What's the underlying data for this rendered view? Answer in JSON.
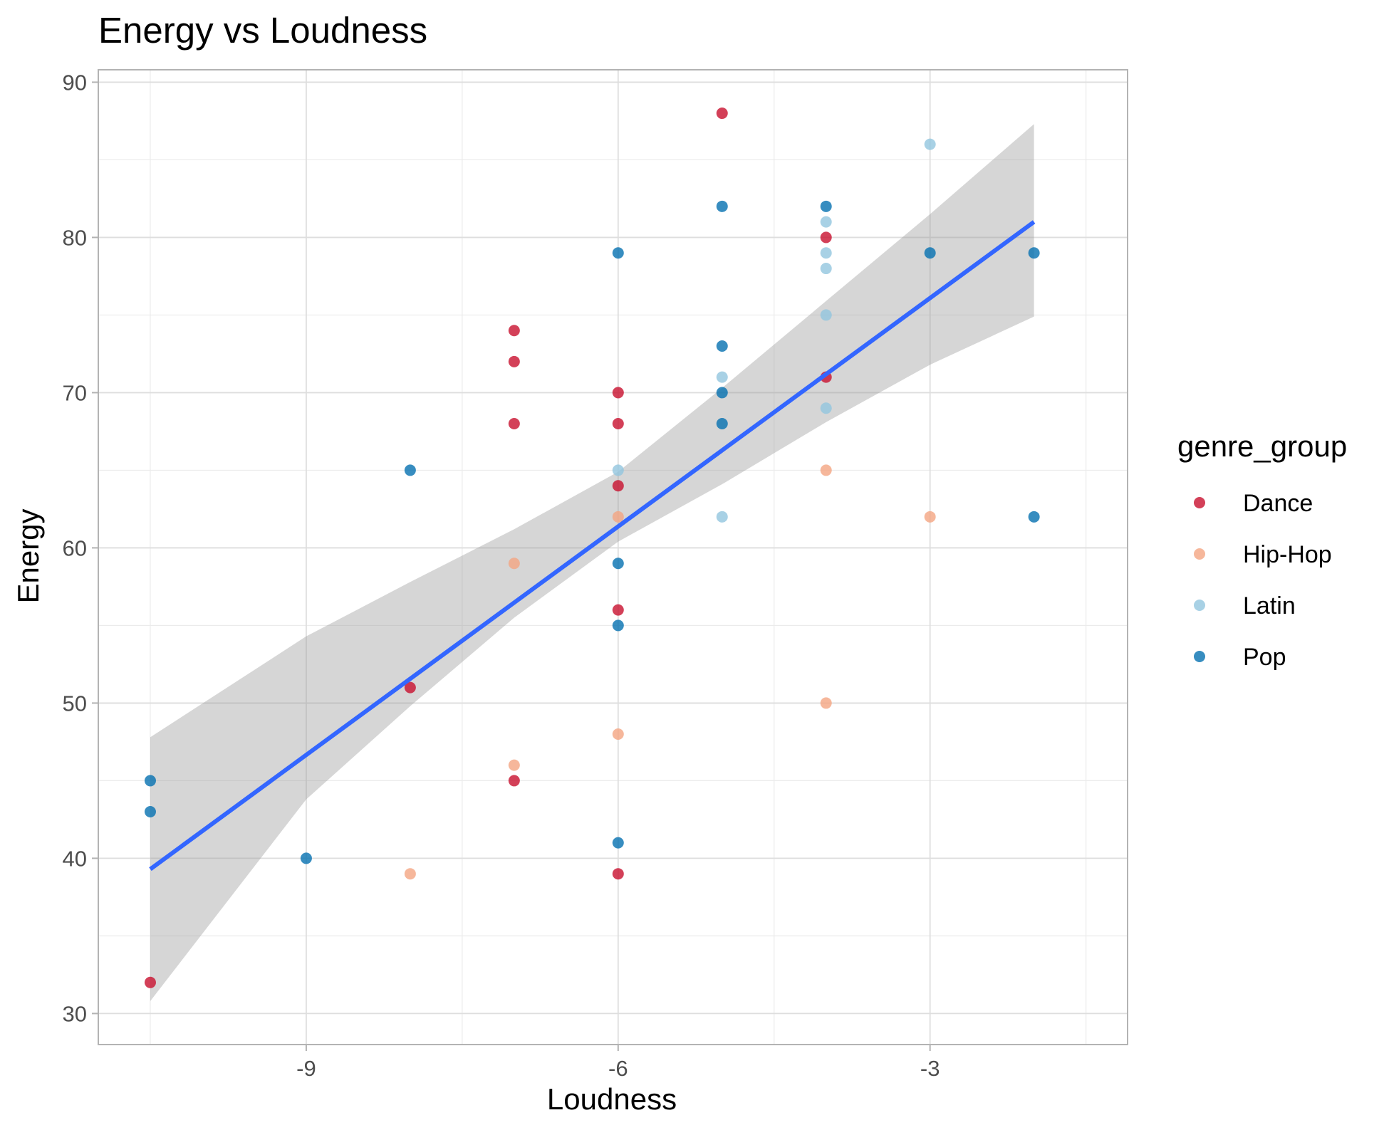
{
  "chart_data": {
    "type": "scatter",
    "title": "Energy vs Loudness",
    "xlabel": "Loudness",
    "ylabel": "Energy",
    "xlim": [
      -11.0,
      -1.1
    ],
    "ylim": [
      28,
      90.8
    ],
    "x_ticks": [
      -9,
      -6,
      -3
    ],
    "y_ticks": [
      30,
      40,
      50,
      60,
      70,
      80,
      90
    ],
    "grid": true,
    "legend": {
      "title": "genre_group",
      "position": "right"
    },
    "series": [
      {
        "name": "Dance",
        "color": "#c8102e",
        "points": [
          [
            -5,
            88
          ],
          [
            -4,
            80
          ],
          [
            -7,
            74
          ],
          [
            -7,
            72
          ],
          [
            -6,
            70
          ],
          [
            -7,
            68
          ],
          [
            -6,
            68
          ],
          [
            -6,
            64
          ],
          [
            -4,
            71
          ],
          [
            -6,
            56
          ],
          [
            -8,
            51
          ],
          [
            -7,
            45
          ],
          [
            -6,
            39
          ],
          [
            -10.5,
            32
          ]
        ]
      },
      {
        "name": "Hip-Hop",
        "color": "#f4a582",
        "points": [
          [
            -4,
            65
          ],
          [
            -6,
            62
          ],
          [
            -3,
            62
          ],
          [
            -7,
            59
          ],
          [
            -4,
            50
          ],
          [
            -6,
            48
          ],
          [
            -7,
            46
          ],
          [
            -8,
            39
          ]
        ]
      },
      {
        "name": "Latin",
        "color": "#92c5de",
        "points": [
          [
            -3,
            86
          ],
          [
            -4,
            81
          ],
          [
            -4,
            79
          ],
          [
            -4,
            78
          ],
          [
            -4,
            75
          ],
          [
            -5,
            71
          ],
          [
            -4,
            69
          ],
          [
            -6,
            65
          ],
          [
            -5,
            62
          ]
        ]
      },
      {
        "name": "Pop",
        "color": "#0571b0",
        "points": [
          [
            -5,
            82
          ],
          [
            -4,
            82
          ],
          [
            -6,
            79
          ],
          [
            -3,
            79
          ],
          [
            -2,
            79
          ],
          [
            -5,
            73
          ],
          [
            -5,
            70
          ],
          [
            -5,
            68
          ],
          [
            -8,
            65
          ],
          [
            -6,
            59
          ],
          [
            -6,
            55
          ],
          [
            -2,
            62
          ],
          [
            -10.5,
            45
          ],
          [
            -10.5,
            43
          ],
          [
            -9,
            40
          ],
          [
            -6,
            41
          ]
        ]
      }
    ],
    "trend": {
      "method": "linear",
      "color": "#3366ff",
      "ribbon_color": "#999999",
      "line": [
        [
          -10.5,
          39.3
        ],
        [
          -2,
          81.0
        ]
      ],
      "ribbon": [
        [
          -10.5,
          30.8,
          47.8
        ],
        [
          -9,
          43.8,
          54.3
        ],
        [
          -8,
          49.8,
          57.8
        ],
        [
          -7,
          55.5,
          61.2
        ],
        [
          -6,
          60.4,
          64.9
        ],
        [
          -5,
          64.1,
          70.3
        ],
        [
          -4,
          68.1,
          75.9
        ],
        [
          -3,
          71.8,
          81.5
        ],
        [
          -2,
          74.9,
          87.3
        ]
      ]
    }
  }
}
